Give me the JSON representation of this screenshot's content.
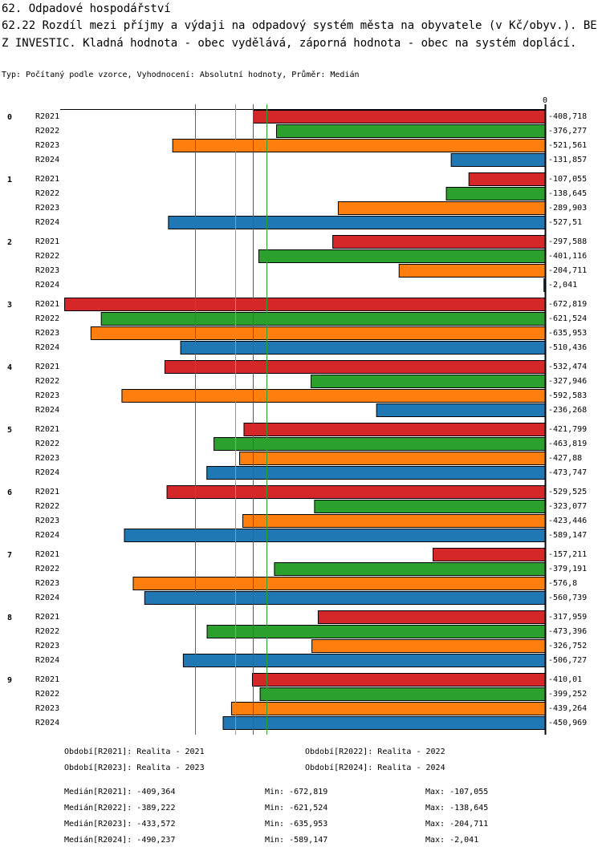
{
  "title": "62. Odpadové hospodářství",
  "subtitle": "62.22 Rozdíl mezi příjmy a výdaji na odpadový systém města na obyvatele (v Kč/obyv.). BEZ INVESTIC. Kladná hodnota - obec vydělává, záporná hodnota - obec na systém doplácí.",
  "info": "Typ: Počítaný podle vzorce, Vyhodnocení: Absolutní hodnoty, Průměr: Medián",
  "chart_data": {
    "type": "bar",
    "orientation": "horizontal",
    "zero_label": "0",
    "xlim": [
      -672.819,
      0
    ],
    "categories": [
      "0",
      "1",
      "2",
      "3",
      "4",
      "5",
      "6",
      "7",
      "8",
      "9"
    ],
    "series": [
      {
        "name": "R2021",
        "color": "#d62728",
        "values": [
          -408.718,
          -107.055,
          -297.588,
          -672.819,
          -532.474,
          -421.799,
          -529.525,
          -157.211,
          -317.959,
          -410.01
        ],
        "labels": [
          "-408,718",
          "-107,055",
          "-297,588",
          "-672,819",
          "-532,474",
          "-421,799",
          "-529,525",
          "-157,211",
          "-317,959",
          "-410,01"
        ],
        "median": -409.364
      },
      {
        "name": "R2022",
        "color": "#2ca02c",
        "values": [
          -376.277,
          -138.645,
          -401.116,
          -621.524,
          -327.946,
          -463.819,
          -323.077,
          -379.191,
          -473.396,
          -399.252
        ],
        "labels": [
          "-376,277",
          "-138,645",
          "-401,116",
          "-621,524",
          "-327,946",
          "-463,819",
          "-323,077",
          "-379,191",
          "-473,396",
          "-399,252"
        ],
        "median": -389.222
      },
      {
        "name": "R2023",
        "color": "#ff7f0e",
        "values": [
          -521.561,
          -289.903,
          -204.711,
          -635.953,
          -592.583,
          -427.88,
          -423.446,
          -576.8,
          -326.752,
          -439.264
        ],
        "labels": [
          "-521,561",
          "-289,903",
          "-204,711",
          "-635,953",
          "-592,583",
          "-427,88",
          "-423,446",
          "-576,8",
          "-326,752",
          "-439,264"
        ],
        "median": -433.572
      },
      {
        "name": "R2024",
        "color": "#1f77b4",
        "values": [
          -131.857,
          -527.51,
          -2.041,
          -510.436,
          -236.268,
          -473.747,
          -589.147,
          -560.739,
          -506.727,
          -450.969
        ],
        "labels": [
          "-131,857",
          "-527,51",
          "-2,041",
          "-510,436",
          "-236,268",
          "-473,747",
          "-589,147",
          "-560,739",
          "-506,727",
          "-450,969"
        ],
        "median": -490.237
      }
    ]
  },
  "legend": [
    "Období[R2021]: Realita - 2021",
    "Období[R2022]: Realita - 2022",
    "Období[R2023]: Realita - 2023",
    "Období[R2024]: Realita - 2024"
  ],
  "stats": [
    {
      "median": "Medián[R2021]: -409,364",
      "min": "Min: -672,819",
      "max": "Max: -107,055"
    },
    {
      "median": "Medián[R2022]: -389,222",
      "min": "Min: -621,524",
      "max": "Max: -138,645"
    },
    {
      "median": "Medián[R2023]: -433,572",
      "min": "Min: -635,953",
      "max": "Max: -204,711"
    },
    {
      "median": "Medián[R2024]: -490,237",
      "min": "Min: -589,147",
      "max": "Max: -2,041"
    }
  ]
}
